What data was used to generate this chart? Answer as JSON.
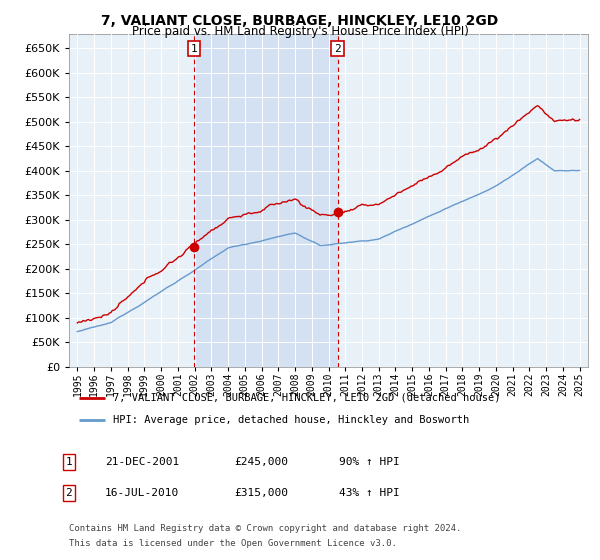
{
  "title": "7, VALIANT CLOSE, BURBAGE, HINCKLEY, LE10 2GD",
  "subtitle": "Price paid vs. HM Land Registry's House Price Index (HPI)",
  "legend_line1": "7, VALIANT CLOSE, BURBAGE, HINCKLEY, LE10 2GD (detached house)",
  "legend_line2": "HPI: Average price, detached house, Hinckley and Bosworth",
  "annotation1": {
    "num": "1",
    "date": "21-DEC-2001",
    "price": "£245,000",
    "hpi": "90% ↑ HPI"
  },
  "annotation2": {
    "num": "2",
    "date": "16-JUL-2010",
    "price": "£315,000",
    "hpi": "43% ↑ HPI"
  },
  "footnote1": "Contains HM Land Registry data © Crown copyright and database right 2024.",
  "footnote2": "This data is licensed under the Open Government Licence v3.0.",
  "red_color": "#cc0000",
  "blue_color": "#6699cc",
  "shade_color": "#ddeeff",
  "background_color": "#e8f0f8",
  "grid_color": "#ffffff",
  "marker1_x": 2001.97,
  "marker2_x": 2010.54,
  "marker1_y": 245000,
  "marker2_y": 315000,
  "ylim": [
    0,
    680000
  ],
  "xlim": [
    1994.5,
    2025.5
  ],
  "yticks": [
    0,
    50000,
    100000,
    150000,
    200000,
    250000,
    300000,
    350000,
    400000,
    450000,
    500000,
    550000,
    600000,
    650000
  ],
  "xticks": [
    1995,
    1996,
    1997,
    1998,
    1999,
    2000,
    2001,
    2002,
    2003,
    2004,
    2005,
    2006,
    2007,
    2008,
    2009,
    2010,
    2011,
    2012,
    2013,
    2014,
    2015,
    2016,
    2017,
    2018,
    2019,
    2020,
    2021,
    2022,
    2023,
    2024,
    2025
  ]
}
